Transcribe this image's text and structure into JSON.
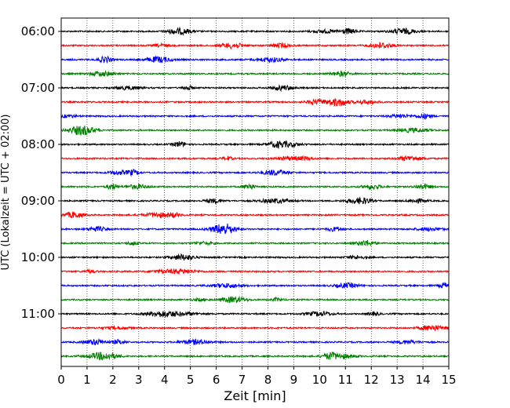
{
  "chart_data": {
    "type": "line",
    "xlabel": "Zeit  [min]",
    "ylabel": "UTC (Lokalzeit = UTC + 02:00)",
    "xlim": [
      0,
      15
    ],
    "x_ticks": [
      "0",
      "1",
      "2",
      "3",
      "4",
      "5",
      "6",
      "7",
      "8",
      "9",
      "10",
      "11",
      "12",
      "13",
      "14",
      "15"
    ],
    "y_tick_labels": [
      "06:00",
      "07:00",
      "08:00",
      "09:00",
      "10:00",
      "11:00"
    ],
    "trace_start_times": [
      "06:00",
      "06:15",
      "06:30",
      "06:45",
      "07:00",
      "07:15",
      "07:30",
      "07:45",
      "08:00",
      "08:15",
      "08:30",
      "08:45",
      "09:00",
      "09:15",
      "09:30",
      "09:45",
      "10:00",
      "10:15",
      "10:30",
      "10:45",
      "11:00",
      "11:15",
      "11:30",
      "11:45"
    ],
    "trace_duration_min": 15,
    "trace_colors": [
      "#000000",
      "#ff0000",
      "#0000ff",
      "#008000"
    ],
    "grid": "vertical dotted lines at each minute"
  }
}
